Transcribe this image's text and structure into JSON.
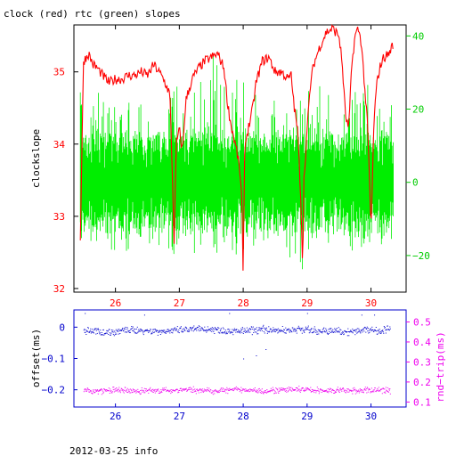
{
  "title": "clock (red) rtc (green) slopes",
  "footer": "2012-03-25 info",
  "colors": {
    "clock": "#ff0000",
    "rtc": "#00ee00",
    "offset": "#0000cc",
    "rnd_trip": "#ee00ee",
    "axis_black": "#000000",
    "axis_red": "#ff0000",
    "axis_green": "#00cc00",
    "axis_blue": "#0000cc",
    "axis_magenta": "#ee00ee"
  },
  "chart_data": [
    {
      "type": "line",
      "panel": "top",
      "ylabel": "clockslope",
      "ylim": [
        31.95,
        35.65
      ],
      "y2lim": [
        -30,
        43
      ],
      "xlim": [
        25.35,
        30.55
      ],
      "x_ticks": [
        26,
        27,
        28,
        29,
        30
      ],
      "x_tick_labels": [
        "26",
        "27",
        "28",
        "29",
        "30"
      ],
      "y_ticks": [
        32,
        33,
        34,
        35
      ],
      "y_tick_labels": [
        "32",
        "33",
        "34",
        "35"
      ],
      "y2_ticks": [
        -20,
        0,
        20,
        40
      ],
      "y2_tick_labels": [
        "−20",
        "0",
        "20",
        "40"
      ],
      "series": [
        {
          "name": "clock",
          "axis": "left",
          "x": [
            25.45,
            25.5,
            25.58,
            25.65,
            25.72,
            25.8,
            25.9,
            26.0,
            26.1,
            26.2,
            26.3,
            26.4,
            26.5,
            26.6,
            26.68,
            26.75,
            26.8,
            26.85,
            26.88,
            26.92,
            26.95,
            27.0,
            27.05,
            27.1,
            27.2,
            27.3,
            27.4,
            27.5,
            27.6,
            27.7,
            27.75,
            27.8,
            27.85,
            27.9,
            27.95,
            27.98,
            28.0,
            28.02,
            28.05,
            28.1,
            28.15,
            28.2,
            28.3,
            28.4,
            28.5,
            28.6,
            28.7,
            28.75,
            28.8,
            28.85,
            28.9,
            28.93,
            28.95,
            29.0,
            29.05,
            29.1,
            29.2,
            29.3,
            29.4,
            29.5,
            29.55,
            29.6,
            29.65,
            29.7,
            29.75,
            29.8,
            29.85,
            29.9,
            29.95,
            30.0,
            30.05,
            30.1,
            30.15,
            30.2,
            30.28,
            30.35
          ],
          "values": [
            32.7,
            35.15,
            35.25,
            35.1,
            35.05,
            34.95,
            34.85,
            34.9,
            34.9,
            34.95,
            34.95,
            35.0,
            34.95,
            35.1,
            35.0,
            34.9,
            34.8,
            34.7,
            33.9,
            32.6,
            34.0,
            34.2,
            33.9,
            34.6,
            34.9,
            35.05,
            35.15,
            35.2,
            35.25,
            35.05,
            34.6,
            34.3,
            34.1,
            33.9,
            33.6,
            33.2,
            32.0,
            33.9,
            34.1,
            34.3,
            34.5,
            34.85,
            35.15,
            35.2,
            35.0,
            35.0,
            34.9,
            34.95,
            34.5,
            34.2,
            33.3,
            32.3,
            33.5,
            34.2,
            34.8,
            35.1,
            35.35,
            35.55,
            35.6,
            35.5,
            35.1,
            34.4,
            34.2,
            35.1,
            35.5,
            35.6,
            35.4,
            34.8,
            34.2,
            32.8,
            34.4,
            34.9,
            35.1,
            35.2,
            35.25,
            35.4
          ]
        },
        {
          "name": "rtc",
          "axis": "right",
          "x": [
            25.45,
            25.55,
            25.65,
            25.75,
            25.85,
            25.95,
            26.05,
            26.15,
            26.25,
            26.35,
            26.45,
            26.55,
            26.65,
            26.75,
            26.85,
            26.95,
            27.05,
            27.15,
            27.25,
            27.35,
            27.45,
            27.55,
            27.65,
            27.75,
            27.85,
            27.95,
            28.05,
            28.15,
            28.25,
            28.35,
            28.45,
            28.55,
            28.65,
            28.75,
            28.85,
            28.95,
            29.05,
            29.15,
            29.25,
            29.35,
            29.45,
            29.55,
            29.65,
            29.75,
            29.85,
            29.95,
            30.05,
            30.15,
            30.25,
            30.35
          ],
          "high": [
            26,
            24,
            22,
            25,
            23,
            20,
            22,
            21,
            24,
            22,
            23,
            21,
            27,
            24,
            22,
            30,
            26,
            23,
            28,
            31,
            33,
            36,
            30,
            26,
            25,
            33,
            24,
            22,
            28,
            26,
            24,
            24,
            23,
            26,
            22,
            24,
            28,
            30,
            26,
            27,
            24,
            22,
            30,
            26,
            25,
            27,
            23,
            24,
            21,
            22
          ],
          "low": [
            -18,
            -16,
            -17,
            -19,
            -18,
            -20,
            -16,
            -19,
            -18,
            -17,
            -16,
            -21,
            -18,
            -17,
            -20,
            -22,
            -19,
            -18,
            -21,
            -22,
            -17,
            -20,
            -18,
            -21,
            -19,
            -23,
            -17,
            -20,
            -18,
            -20,
            -17,
            -19,
            -20,
            -23,
            -21,
            -26,
            -18,
            -17,
            -20,
            -21,
            -18,
            -19,
            -17,
            -20,
            -18,
            -16,
            -18,
            -19,
            -17,
            -16
          ],
          "band": [
            -8,
            8
          ]
        }
      ]
    },
    {
      "type": "scatter",
      "panel": "bottom",
      "ylabel": "offset(ms)",
      "y2label": "rnd−trip(ms)",
      "ylim": [
        -0.255,
        0.055
      ],
      "y2lim": [
        0.075,
        0.56
      ],
      "xlim": [
        25.35,
        30.55
      ],
      "x_ticks": [
        26,
        27,
        28,
        29,
        30
      ],
      "x_tick_labels": [
        "26",
        "27",
        "28",
        "29",
        "30"
      ],
      "y_ticks": [
        0,
        -0.1,
        -0.2
      ],
      "y_tick_labels": [
        "0",
        "−0.1",
        "−0.2"
      ],
      "y2_ticks": [
        0.1,
        0.2,
        0.3,
        0.4,
        0.5
      ],
      "y2_tick_labels": [
        "0.1",
        "0.2",
        "0.3",
        "0.4",
        "0.5"
      ],
      "series": [
        {
          "name": "offset",
          "axis": "left",
          "x": [
            25.5,
            25.7,
            25.9,
            26.1,
            26.3,
            26.5,
            26.7,
            26.9,
            27.1,
            27.3,
            27.5,
            27.7,
            27.9,
            28.1,
            28.3,
            28.5,
            28.7,
            28.9,
            29.1,
            29.3,
            29.5,
            29.7,
            29.9,
            30.1,
            30.3
          ],
          "center": [
            -0.01,
            -0.012,
            -0.015,
            -0.01,
            -0.008,
            -0.01,
            -0.012,
            -0.01,
            -0.008,
            -0.005,
            -0.005,
            -0.01,
            -0.012,
            -0.01,
            -0.005,
            -0.01,
            -0.008,
            -0.005,
            -0.01,
            -0.012,
            -0.01,
            -0.015,
            -0.005,
            -0.01,
            -0.005
          ],
          "spread": 0.014,
          "outliers": [
            [
              25.52,
              0.045
            ],
            [
              26.45,
              0.04
            ],
            [
              27.78,
              0.045
            ],
            [
              28.0,
              -0.1
            ],
            [
              28.2,
              -0.09
            ],
            [
              28.35,
              -0.07
            ],
            [
              29.0,
              0.045
            ],
            [
              29.85,
              0.04
            ],
            [
              30.05,
              0.04
            ]
          ]
        },
        {
          "name": "rnd_trip",
          "axis": "right",
          "x": [
            25.5,
            25.7,
            25.9,
            26.1,
            26.3,
            26.5,
            26.7,
            26.9,
            27.1,
            27.3,
            27.5,
            27.7,
            27.9,
            28.1,
            28.3,
            28.5,
            28.7,
            28.9,
            29.1,
            29.3,
            29.5,
            29.7,
            29.9,
            30.1,
            30.3
          ],
          "center": [
            0.16,
            0.155,
            0.16,
            0.16,
            0.155,
            0.16,
            0.158,
            0.16,
            0.165,
            0.16,
            0.158,
            0.16,
            0.163,
            0.162,
            0.158,
            0.16,
            0.162,
            0.165,
            0.16,
            0.158,
            0.16,
            0.158,
            0.16,
            0.162,
            0.16
          ],
          "spread": 0.018
        }
      ]
    }
  ]
}
